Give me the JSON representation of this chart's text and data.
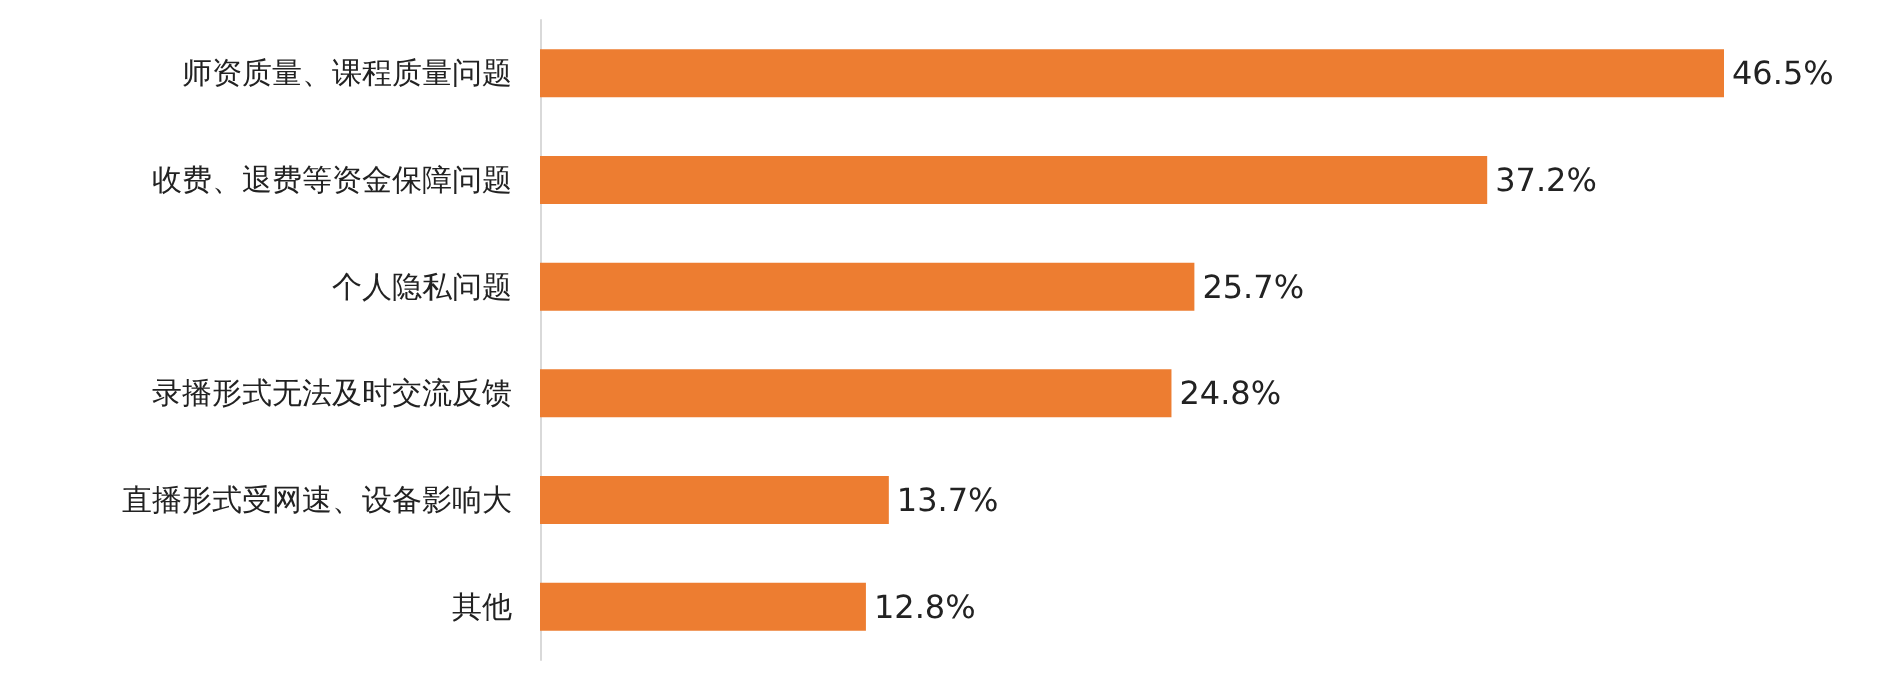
{
  "chart_data": {
    "type": "bar",
    "orientation": "horizontal",
    "categories": [
      "师资质量、课程质量问题",
      "收费、退费等资金保障问题",
      "个人隐私问题",
      "录播形式无法及时交流反馈",
      "直播形式受网速、设备影响大",
      "其他"
    ],
    "values": [
      46.5,
      37.2,
      25.7,
      24.8,
      13.7,
      12.8
    ],
    "value_labels": [
      "46.5%",
      "37.2%",
      "25.7%",
      "24.8%",
      "13.7%",
      "12.8%"
    ],
    "color": "#ed7d31",
    "tick_labels": "y"
  }
}
